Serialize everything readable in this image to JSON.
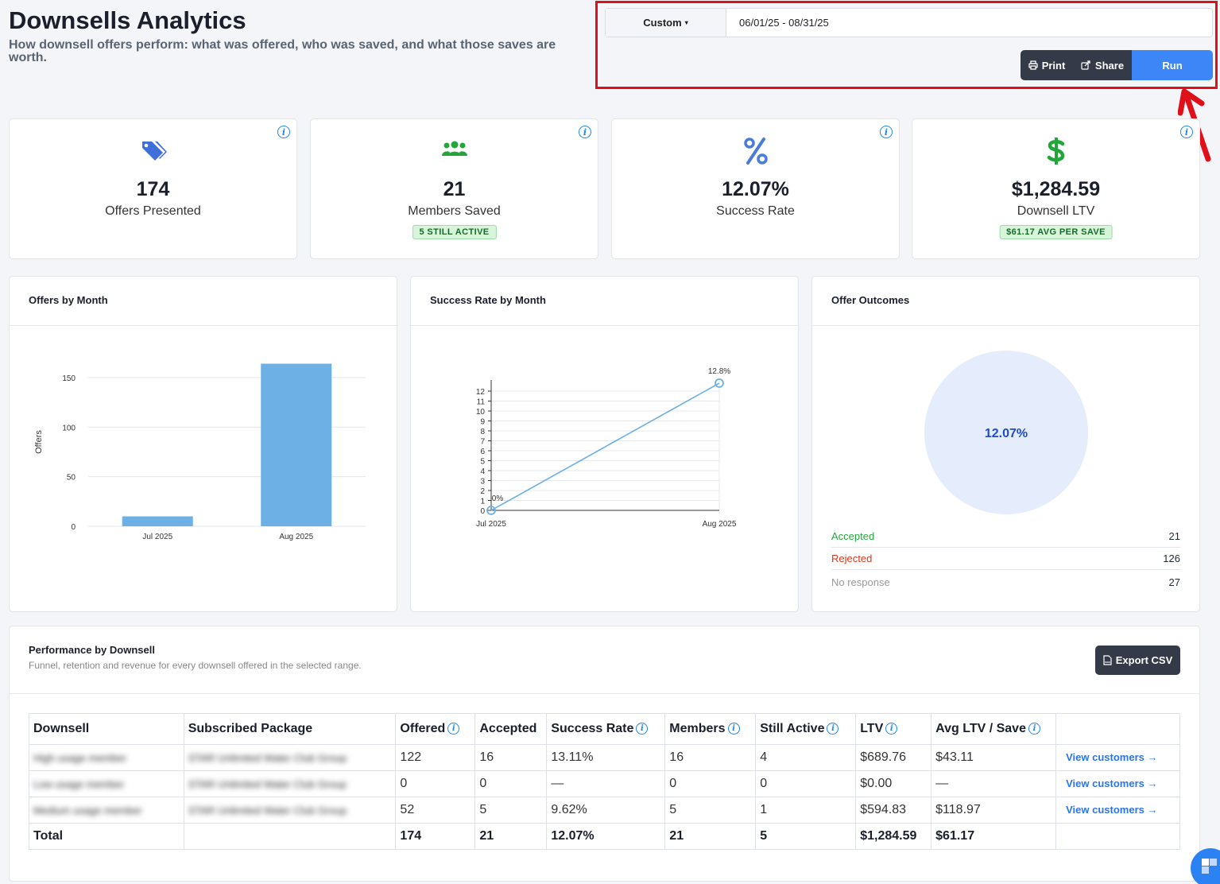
{
  "header": {
    "title": "Downsells Analytics",
    "subtitle": "How downsell offers perform: what was offered, who was saved, and what those saves are worth."
  },
  "date_range": {
    "preset_label": "Custom",
    "value": "06/01/25 - 08/31/25"
  },
  "actions": {
    "print_label": "Print",
    "share_label": "Share",
    "run_label": "Run"
  },
  "kpis": [
    {
      "icon": "tags-icon",
      "value": "174",
      "label": "Offers Presented",
      "color": "#3f6fd8"
    },
    {
      "icon": "users-icon",
      "value": "21",
      "label": "Members Saved",
      "badge": "5 STILL ACTIVE",
      "color": "#22a63a"
    },
    {
      "icon": "percent-icon",
      "value": "12.07%",
      "label": "Success Rate",
      "color": "#4a7bd8"
    },
    {
      "icon": "dollar-icon",
      "value": "$1,284.59",
      "label": "Downsell LTV",
      "badge": "$61.17 AVG PER SAVE",
      "color": "#22a63a"
    }
  ],
  "charts": {
    "offers_title": "Offers by Month",
    "success_title": "Success Rate by Month",
    "outcomes_title": "Offer Outcomes"
  },
  "chart_data": [
    {
      "type": "bar",
      "title": "Offers by Month",
      "categories": [
        "Jul 2025",
        "Aug 2025"
      ],
      "values": [
        10,
        164
      ],
      "ylabel": "Offers",
      "yticks": [
        0,
        50,
        100,
        150
      ],
      "ylim": [
        0,
        170
      ],
      "grid": true,
      "color": "#6db0e5"
    },
    {
      "type": "line",
      "title": "Success Rate by Month",
      "categories": [
        "Jul 2025",
        "Aug 2025"
      ],
      "values": [
        0,
        12.8
      ],
      "data_labels": [
        "0%",
        "12.8%"
      ],
      "yticks": [
        0,
        1,
        2,
        3,
        4,
        5,
        6,
        7,
        8,
        9,
        10,
        11,
        12
      ],
      "ylim": [
        0,
        12.8
      ],
      "grid": true,
      "color": "#6db0e5"
    },
    {
      "type": "pie",
      "title": "Offer Outcomes",
      "center_label": "12.07%",
      "color": "#e5edfd",
      "label_color": "#1e4bc8",
      "legend": [
        {
          "label": "Accepted",
          "value": "21",
          "color": "#22a63a"
        },
        {
          "label": "Rejected",
          "value": "126",
          "color": "#d93a1e"
        },
        {
          "label": "No response",
          "value": "27",
          "color": "#999999"
        }
      ]
    }
  ],
  "performance": {
    "title": "Performance by Downsell",
    "subtitle": "Funnel, retention and revenue for every downsell offered in the selected range.",
    "export_label": "Export CSV",
    "columns": [
      "Downsell",
      "Subscribed Package",
      "Offered",
      "Accepted",
      "Success Rate",
      "Members",
      "Still Active",
      "LTV",
      "Avg LTV / Save"
    ],
    "rows": [
      {
        "downsell": "High usage member",
        "package": "STAR Unlimited Water Club Group",
        "offered": "122",
        "accepted": "16",
        "success_rate": "13.11%",
        "members": "16",
        "still_active": "4",
        "ltv": "$689.76",
        "avg": "$43.11",
        "link": "View customers →"
      },
      {
        "downsell": "Low usage member",
        "package": "STAR Unlimited Water Club Group",
        "offered": "0",
        "accepted": "0",
        "success_rate": "—",
        "members": "0",
        "still_active": "0",
        "ltv": "$0.00",
        "avg": "—",
        "link": "View customers →"
      },
      {
        "downsell": "Medium usage member",
        "package": "STAR Unlimited Water Club Group",
        "offered": "52",
        "accepted": "5",
        "success_rate": "9.62%",
        "members": "5",
        "still_active": "1",
        "ltv": "$594.83",
        "avg": "$118.97",
        "link": "View customers →"
      }
    ],
    "total": {
      "label": "Total",
      "offered": "174",
      "accepted": "21",
      "success_rate": "12.07%",
      "members": "21",
      "still_active": "5",
      "ltv": "$1,284.59",
      "avg": "$61.17"
    }
  },
  "colors": {
    "accent": "#3d86f7",
    "highlight_border": "#e0101a",
    "dark_button": "#343a47"
  }
}
